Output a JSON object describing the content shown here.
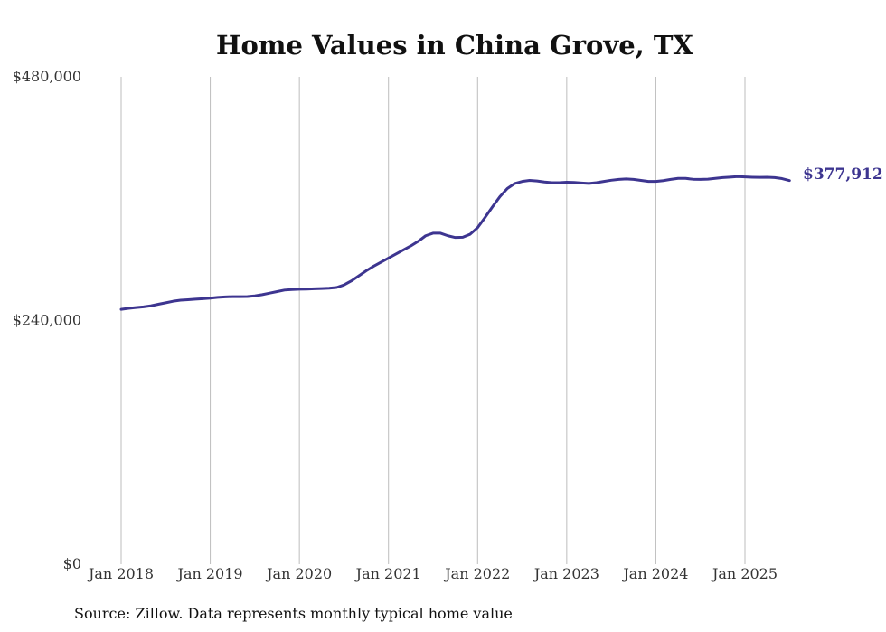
{
  "chart_data": {
    "type": "line",
    "title": "Home Values in China Grove, TX",
    "source": "Source: Zillow. Data represents monthly typical home value",
    "xlabel": "",
    "ylabel": "",
    "ylim": [
      0,
      480000
    ],
    "y_ticks": [
      {
        "value": 0,
        "label": "$0"
      },
      {
        "value": 240000,
        "label": "$240,000"
      },
      {
        "value": 480000,
        "label": "$480,000"
      }
    ],
    "x_ticks": [
      {
        "date": "2018-01",
        "label": "Jan 2018"
      },
      {
        "date": "2019-01",
        "label": "Jan 2019"
      },
      {
        "date": "2020-01",
        "label": "Jan 2020"
      },
      {
        "date": "2021-01",
        "label": "Jan 2021"
      },
      {
        "date": "2022-01",
        "label": "Jan 2022"
      },
      {
        "date": "2023-01",
        "label": "Jan 2023"
      },
      {
        "date": "2024-01",
        "label": "Jan 2024"
      },
      {
        "date": "2025-01",
        "label": "Jan 2025"
      }
    ],
    "grid": "vertical",
    "line_color": "#3d3590",
    "end_label": "$377,912",
    "series": [
      {
        "x": [
          "2018-01",
          "2018-02",
          "2018-03",
          "2018-04",
          "2018-05",
          "2018-06",
          "2018-07",
          "2018-08",
          "2018-09",
          "2018-10",
          "2018-11",
          "2018-12",
          "2019-01",
          "2019-02",
          "2019-03",
          "2019-04",
          "2019-05",
          "2019-06",
          "2019-07",
          "2019-08",
          "2019-09",
          "2019-10",
          "2019-11",
          "2019-12",
          "2020-01",
          "2020-02",
          "2020-03",
          "2020-04",
          "2020-05",
          "2020-06",
          "2020-07",
          "2020-08",
          "2020-09",
          "2020-10",
          "2020-11",
          "2020-12",
          "2021-01",
          "2021-02",
          "2021-03",
          "2021-04",
          "2021-05",
          "2021-06",
          "2021-07",
          "2021-08",
          "2021-09",
          "2021-10",
          "2021-11",
          "2021-12",
          "2022-01",
          "2022-02",
          "2022-03",
          "2022-04",
          "2022-05",
          "2022-06",
          "2022-07",
          "2022-08",
          "2022-09",
          "2022-10",
          "2022-11",
          "2022-12",
          "2023-01",
          "2023-02",
          "2023-03",
          "2023-04",
          "2023-05",
          "2023-06",
          "2023-07",
          "2023-08",
          "2023-09",
          "2023-10",
          "2023-11",
          "2023-12",
          "2024-01",
          "2024-02",
          "2024-03",
          "2024-04",
          "2024-05",
          "2024-06",
          "2024-07",
          "2024-08",
          "2024-09",
          "2024-10",
          "2024-11",
          "2024-12",
          "2025-01",
          "2025-02",
          "2025-03",
          "2025-04",
          "2025-05",
          "2025-06",
          "2025-07"
        ],
        "values": [
          251000,
          252000,
          252800,
          253500,
          254500,
          256000,
          257500,
          259000,
          260000,
          260500,
          261000,
          261500,
          262000,
          262800,
          263300,
          263500,
          263500,
          263600,
          264300,
          265500,
          267000,
          268500,
          270000,
          270500,
          270800,
          271000,
          271300,
          271500,
          271800,
          272500,
          275000,
          279000,
          284000,
          289000,
          293500,
          297500,
          301500,
          305500,
          309500,
          313500,
          318000,
          323500,
          326000,
          326000,
          323500,
          321800,
          322000,
          325000,
          331500,
          341500,
          352000,
          362000,
          370000,
          375000,
          377000,
          378000,
          377500,
          376500,
          375800,
          375800,
          376300,
          376000,
          375500,
          375000,
          375800,
          377000,
          378200,
          379000,
          379500,
          379000,
          378000,
          377000,
          377000,
          377800,
          379000,
          380000,
          380000,
          379200,
          379000,
          379300,
          380000,
          380800,
          381300,
          381800,
          381500,
          381200,
          381000,
          381100,
          380800,
          379800,
          377912
        ]
      }
    ]
  }
}
